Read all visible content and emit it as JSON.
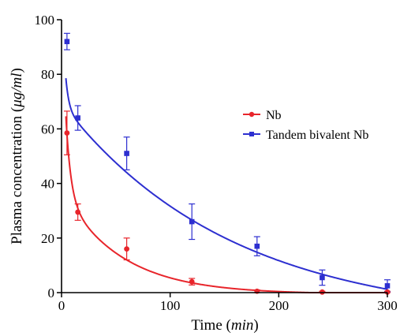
{
  "chart_data": {
    "type": "scatter",
    "title": "",
    "xlabel": "Time",
    "xlabel_unit": "min",
    "ylabel": "Plasma concentration",
    "ylabel_unit": "μg/ml",
    "xlim": [
      0,
      300
    ],
    "ylim": [
      0,
      100
    ],
    "xticks": [
      0,
      100,
      200,
      300
    ],
    "yticks": [
      0,
      20,
      40,
      60,
      80,
      100
    ],
    "grid": false,
    "legend_position": "center-right",
    "series": [
      {
        "name": "Nb",
        "color": "#e8252b",
        "marker": "circle",
        "x": [
          5,
          15,
          60,
          120,
          180,
          240,
          300
        ],
        "y": [
          58.5,
          29.5,
          16,
          4,
          0.5,
          0.2,
          0.2
        ],
        "error": [
          8,
          3,
          4,
          1.2,
          0.5,
          0.3,
          0.3
        ],
        "fit": {
          "A": 72,
          "alpha": 0.22,
          "B": 38,
          "beta": 0.0185,
          "C": -0.55
        }
      },
      {
        "name": "Tandem bivalent Nb",
        "color": "#2d2fd0",
        "marker": "square",
        "x": [
          5,
          15,
          60,
          120,
          180,
          240,
          300
        ],
        "y": [
          92,
          64,
          51,
          26,
          17,
          5.5,
          2.5
        ],
        "error": [
          3,
          4.5,
          6,
          6.5,
          3.5,
          2.8,
          2.2
        ],
        "fit": {
          "A": 45,
          "alpha": 0.35,
          "B": 80,
          "beta": 0.0064,
          "C": -10.5
        }
      }
    ]
  }
}
